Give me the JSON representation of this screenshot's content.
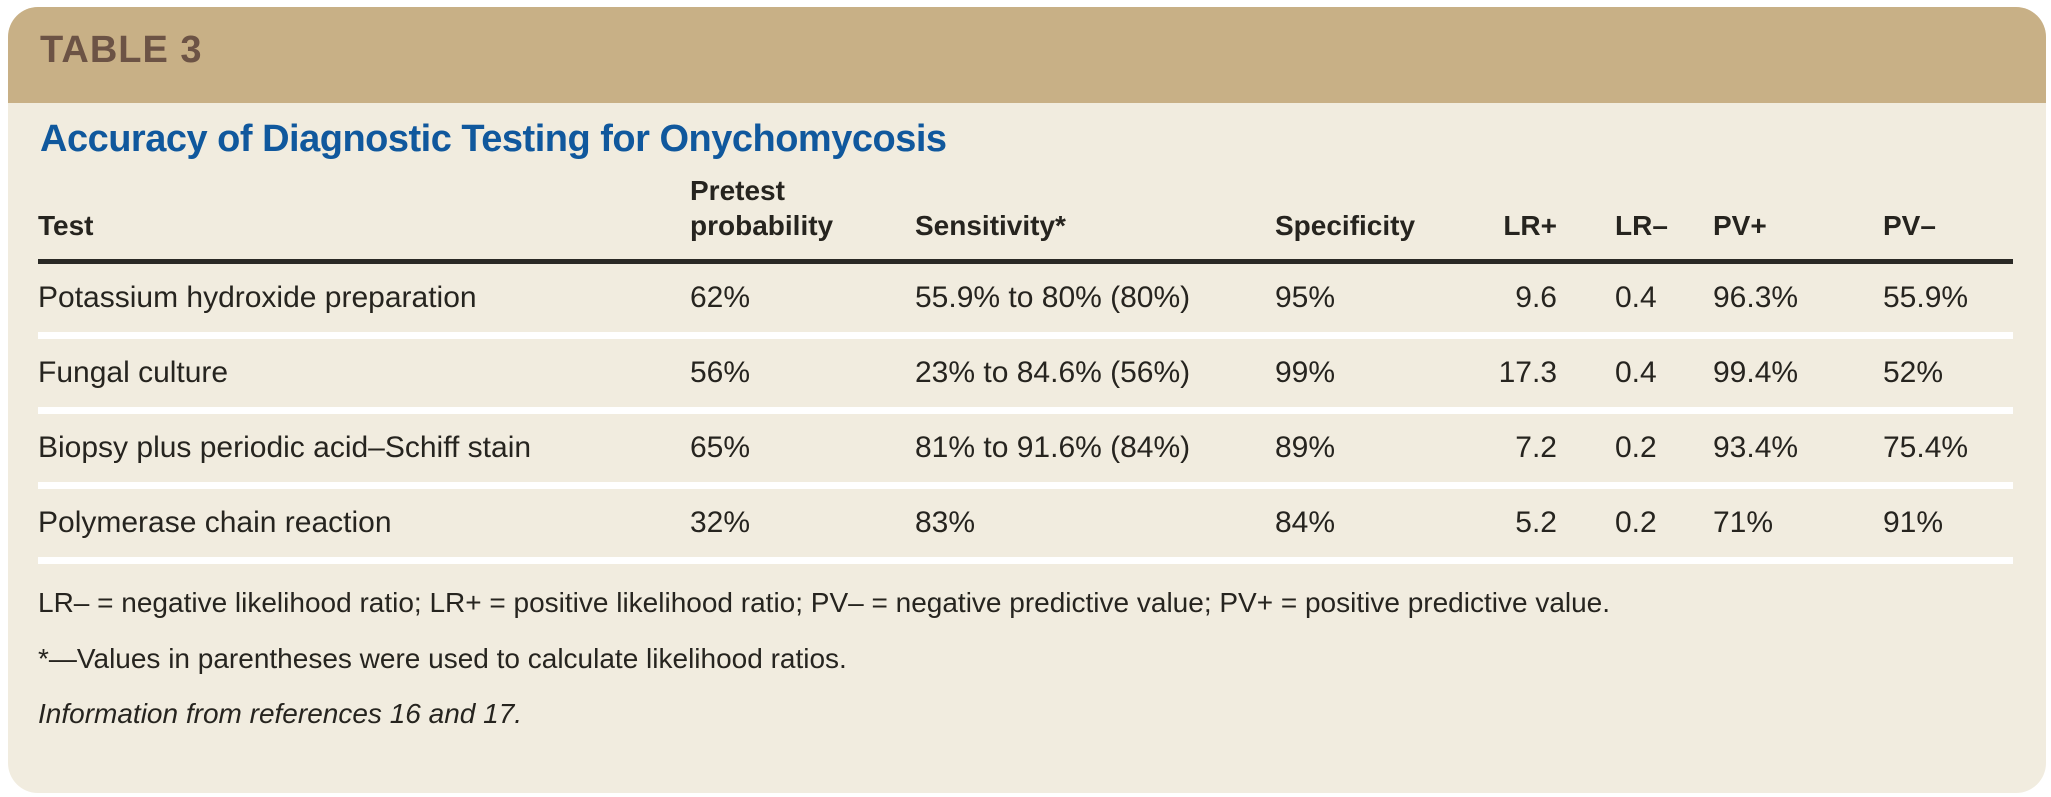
{
  "table_label": "TABLE 3",
  "title": "Accuracy of Diagnostic Testing for Onychomycosis",
  "columns": {
    "test": "Test",
    "pretest": "Pretest probability",
    "sensitivity": "Sensitivity*",
    "specificity": "Specificity",
    "lr_plus": "LR+",
    "lr_minus": "LR–",
    "pv_plus": "PV+",
    "pv_minus": "PV–"
  },
  "rows": [
    {
      "test": "Potassium hydroxide preparation",
      "pretest": "62%",
      "sensitivity": "55.9% to 80% (80%)",
      "specificity": "95%",
      "lr_plus": "9.6",
      "lr_minus": "0.4",
      "pv_plus": "96.3%",
      "pv_minus": "55.9%"
    },
    {
      "test": "Fungal culture",
      "pretest": "56%",
      "sensitivity": "23% to 84.6% (56%)",
      "specificity": "99%",
      "lr_plus": "17.3",
      "lr_minus": "0.4",
      "pv_plus": "99.4%",
      "pv_minus": "52%"
    },
    {
      "test": "Biopsy plus periodic acid–Schiff stain",
      "pretest": "65%",
      "sensitivity": "81% to 91.6% (84%)",
      "specificity": "89%",
      "lr_plus": "7.2",
      "lr_minus": "0.2",
      "pv_plus": "93.4%",
      "pv_minus": "75.4%"
    },
    {
      "test": "Polymerase chain reaction",
      "pretest": "32%",
      "sensitivity": "83%",
      "specificity": "84%",
      "lr_plus": "5.2",
      "lr_minus": "0.2",
      "pv_plus": "71%",
      "pv_minus": "91%"
    }
  ],
  "footnotes": {
    "abbreviations": "LR– = negative likelihood ratio; LR+ = positive likelihood ratio; PV– = negative predictive value; PV+ = positive predictive value.",
    "asterisk": "*—Values in parentheses were used to calculate likelihood ratios.",
    "source": "Information from references 16 and 17."
  },
  "colors": {
    "page_bg": "#ffffff",
    "band": "#c8b086",
    "band_text": "#6c5345",
    "body_bg": "#f1ecdf",
    "title": "#10589d",
    "text": "#26241f",
    "rule": "#2a2925",
    "row_separator": "#ffffff"
  }
}
